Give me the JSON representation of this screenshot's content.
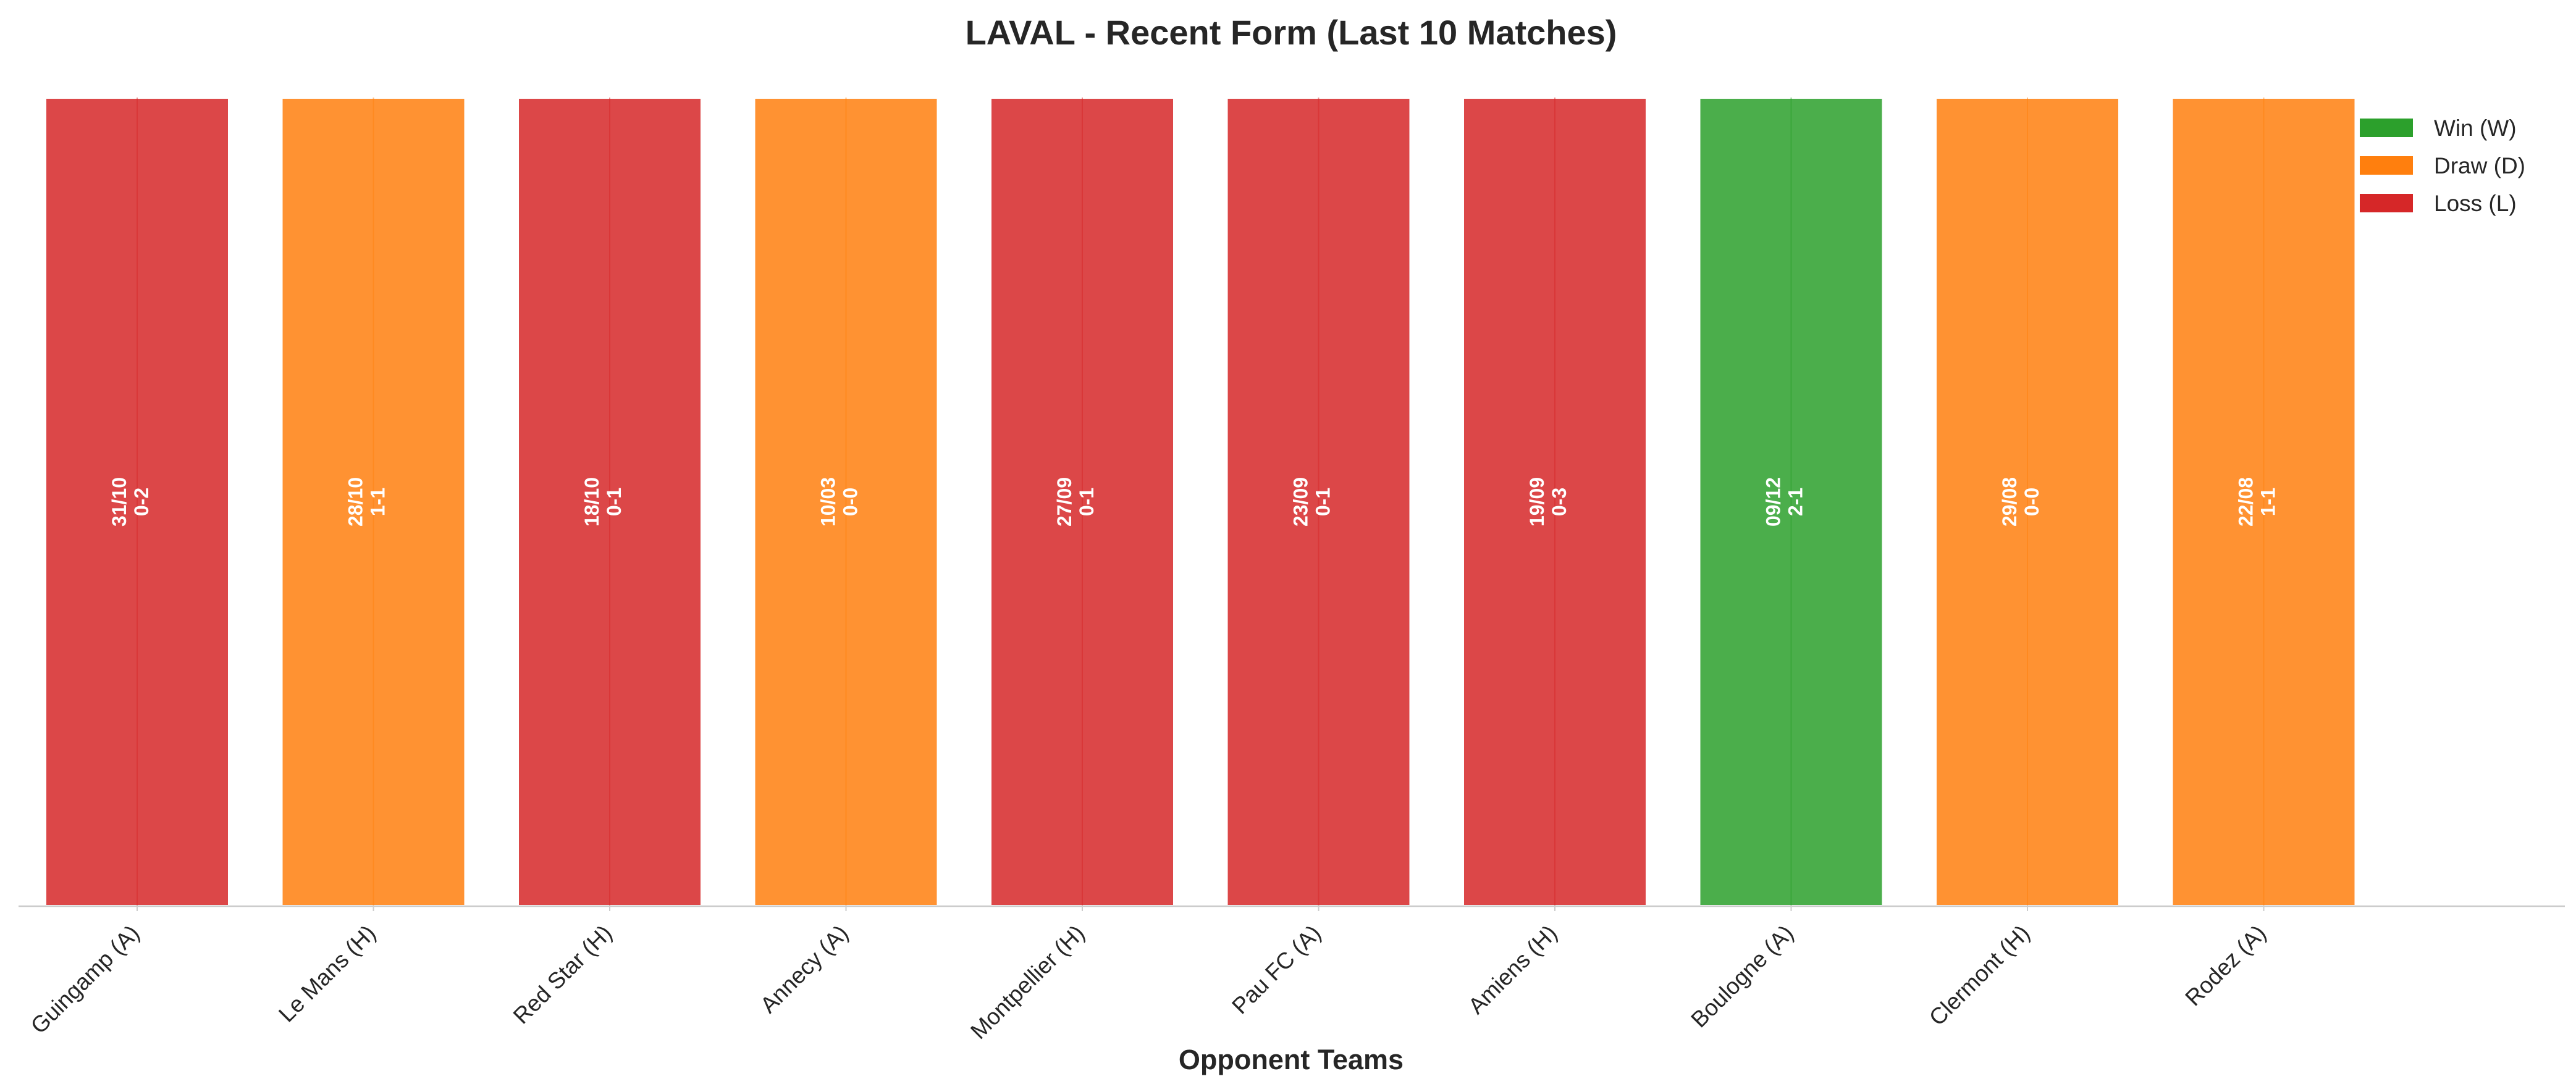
{
  "chart_data": {
    "type": "bar",
    "title": "LAVAL - Recent Form (Last 10 Matches)",
    "xlabel": "Opponent Teams",
    "ylabel": "",
    "categories": [
      "Guingamp (A)",
      "Le Mans (H)",
      "Red Star (H)",
      "Annecy (A)",
      "Montpellier (H)",
      "Pau FC (A)",
      "Amiens (H)",
      "Boulogne (A)",
      "Clermont (H)",
      "Rodez (A)"
    ],
    "values": [
      1,
      1,
      1,
      1,
      1,
      1,
      1,
      1,
      1,
      1
    ],
    "results": [
      "L",
      "D",
      "L",
      "D",
      "L",
      "L",
      "L",
      "W",
      "D",
      "D"
    ],
    "dates": [
      "31/10",
      "28/10",
      "18/10",
      "10/03",
      "27/09",
      "23/09",
      "19/09",
      "09/12",
      "29/08",
      "22/08"
    ],
    "scores": [
      "0-2",
      "1-1",
      "0-1",
      "0-0",
      "0-1",
      "0-1",
      "0-3",
      "2-1",
      "0-0",
      "1-1"
    ],
    "ylim": [
      0,
      1
    ],
    "grid": false,
    "legend": {
      "position": "top-right",
      "entries": [
        {
          "key": "W",
          "label": "Win (W)"
        },
        {
          "key": "D",
          "label": "Draw (D)"
        },
        {
          "key": "L",
          "label": "Loss (L)"
        }
      ]
    },
    "colors": {
      "W": "#2ca02c",
      "D": "#ff7f0e",
      "L": "#d62728"
    }
  }
}
